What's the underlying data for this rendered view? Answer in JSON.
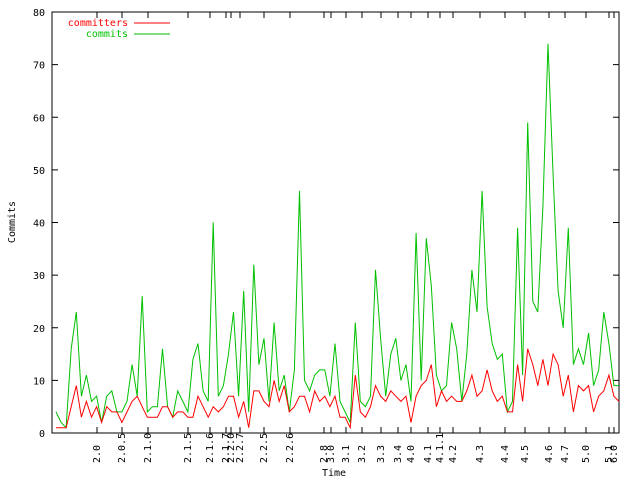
{
  "chart_data": {
    "type": "line",
    "title": "",
    "xlabel": "Time",
    "ylabel": "Commits",
    "ylim": [
      0,
      80
    ],
    "yticks": [
      0,
      10,
      20,
      30,
      40,
      50,
      60,
      70,
      80
    ],
    "grid": false,
    "legend_position": "top-left",
    "x_tick_labels": [
      "2.0",
      "2.0.5",
      "2.1.0",
      "2.1.5",
      "2.1.6",
      "2.1.7",
      "2.2.0",
      "2.2.7",
      "2.2.5",
      "2.2.6",
      "2.8",
      "3.0",
      "3.1",
      "3.2",
      "3.3",
      "3.4",
      "4.0",
      "4.1",
      "4.1.1",
      "4.2",
      "4.3",
      "4.4",
      "4.5",
      "4.6",
      "4.7",
      "5.0",
      "5.1",
      "6.0"
    ],
    "series": [
      {
        "name": "committers",
        "color": "#ff0000",
        "values": [
          1,
          1,
          1,
          5,
          9,
          3,
          6,
          3,
          5,
          2,
          5,
          4,
          4,
          2,
          4,
          6,
          7,
          5,
          3,
          3,
          3,
          5,
          5,
          3,
          4,
          4,
          3,
          3,
          7,
          5,
          3,
          5,
          4,
          5,
          7,
          7,
          3,
          6,
          1,
          8,
          8,
          6,
          5,
          10,
          6,
          9,
          4,
          5,
          7,
          7,
          4,
          8,
          6,
          7,
          5,
          7,
          3,
          3,
          1,
          11,
          4,
          3,
          5,
          9,
          7,
          6,
          8,
          7,
          6,
          7,
          2,
          7,
          9,
          10,
          13,
          5,
          8,
          6,
          7,
          6,
          6,
          8,
          11,
          7,
          8,
          12,
          8,
          6,
          7,
          4,
          4,
          13,
          6,
          16,
          13,
          9,
          14,
          9,
          15,
          13,
          7,
          11,
          4,
          9,
          8,
          9,
          4,
          7,
          8,
          11,
          7,
          6
        ]
      },
      {
        "name": "commits",
        "color": "#00c000",
        "values": [
          4,
          2,
          1,
          16,
          23,
          7,
          11,
          6,
          7,
          2,
          7,
          8,
          4,
          4,
          6,
          13,
          7,
          26,
          4,
          5,
          5,
          16,
          5,
          3,
          8,
          6,
          4,
          14,
          17,
          8,
          6,
          40,
          7,
          9,
          15,
          23,
          7,
          27,
          4,
          32,
          13,
          18,
          6,
          21,
          8,
          11,
          4,
          12,
          46,
          10,
          8,
          11,
          12,
          12,
          7,
          17,
          6,
          4,
          2,
          21,
          6,
          5,
          7,
          31,
          18,
          7,
          15,
          18,
          10,
          13,
          6,
          38,
          10,
          37,
          28,
          11,
          8,
          9,
          21,
          16,
          6,
          15,
          31,
          23,
          46,
          24,
          17,
          14,
          15,
          4,
          6,
          39,
          11,
          59,
          25,
          23,
          43,
          74,
          49,
          27,
          20,
          39,
          13,
          16,
          13,
          19,
          9,
          12,
          23,
          17,
          9,
          9
        ]
      }
    ]
  }
}
